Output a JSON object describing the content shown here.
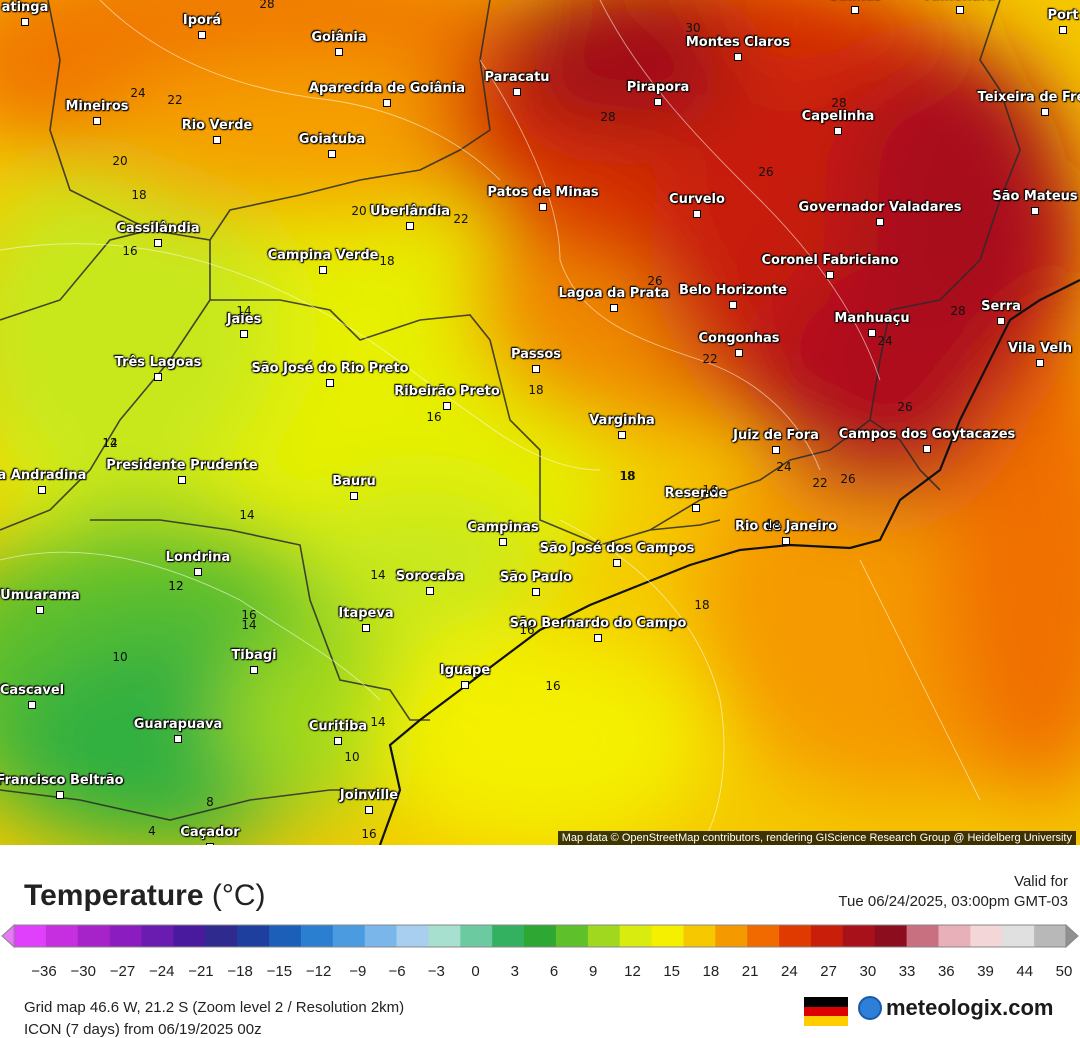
{
  "map": {
    "attribution": "Map data © OpenStreetMap contributors, rendering GIScience Research Group @ Heidelberg University",
    "cities": [
      {
        "name": "atinga"
      },
      {
        "name": "Iporá"
      },
      {
        "name": "Goiânia"
      },
      {
        "name": "Aparecida de Goiânia"
      },
      {
        "name": "Paracatu"
      },
      {
        "name": "Montes Claros"
      },
      {
        "name": "Salinas"
      },
      {
        "name": "Almenara"
      },
      {
        "name": "Port"
      },
      {
        "name": "Mineiros"
      },
      {
        "name": "Rio Verde"
      },
      {
        "name": "Goiatuba"
      },
      {
        "name": "Pirapora"
      },
      {
        "name": "Capelinha"
      },
      {
        "name": "Teixeira de Freitas"
      },
      {
        "name": "Patos de Minas"
      },
      {
        "name": "Curvelo"
      },
      {
        "name": "Governador Valadares"
      },
      {
        "name": "São Mateus"
      },
      {
        "name": "Uberlândia"
      },
      {
        "name": "Cassilândia"
      },
      {
        "name": "Campina Verde"
      },
      {
        "name": "Coronel Fabriciano"
      },
      {
        "name": "Lagoa da Prata"
      },
      {
        "name": "Belo Horizonte"
      },
      {
        "name": "Serra"
      },
      {
        "name": "Vila Velh"
      },
      {
        "name": "Jales"
      },
      {
        "name": "Manhuaçu"
      },
      {
        "name": "Três Lagoas"
      },
      {
        "name": "São José do Rio Preto"
      },
      {
        "name": "Passos"
      },
      {
        "name": "Congonhas"
      },
      {
        "name": "Ribeirão Preto"
      },
      {
        "name": "Varginha"
      },
      {
        "name": "Juiz de Fora"
      },
      {
        "name": "Campos dos Goytacazes"
      },
      {
        "name": "Presidente Prudente"
      },
      {
        "name": "a Andradina"
      },
      {
        "name": "Bauru"
      },
      {
        "name": "Resende"
      },
      {
        "name": "Campinas"
      },
      {
        "name": "Rio de Janeiro"
      },
      {
        "name": "São José dos Campos"
      },
      {
        "name": "Londrina"
      },
      {
        "name": "Sorocaba"
      },
      {
        "name": "São Paulo"
      },
      {
        "name": "Umuarama"
      },
      {
        "name": "São Bernardo do Campo"
      },
      {
        "name": "Itapeva"
      },
      {
        "name": "Tibagi"
      },
      {
        "name": "Iguape"
      },
      {
        "name": "Cascavel"
      },
      {
        "name": "Guarapuava"
      },
      {
        "name": "Curitiba"
      },
      {
        "name": "Francisco Beltrão"
      },
      {
        "name": "Joinville"
      },
      {
        "name": "Caçador"
      }
    ],
    "isotherm_labels": [
      "28",
      "24",
      "22",
      "20",
      "18",
      "16",
      "14",
      "12",
      "10",
      "8",
      "4",
      "30",
      "28",
      "26",
      "22",
      "20",
      "18",
      "16",
      "14",
      "12",
      "16",
      "18",
      "26",
      "28",
      "24",
      "22",
      "26",
      "18",
      "16",
      "18",
      "18",
      "16",
      "16",
      "14",
      "14",
      "14",
      "10",
      "16",
      "24",
      "26",
      "22",
      "18",
      "12",
      "14",
      "28"
    ]
  },
  "legend": {
    "title": "Temperature",
    "unit": "(°C)",
    "valid_label": "Valid for",
    "valid_time": "Tue 06/24/2025, 03:00pm GMT-03",
    "ticks": [
      "−36",
      "−30",
      "−27",
      "−24",
      "−21",
      "−18",
      "−15",
      "−12",
      "−9",
      "−6",
      "−3",
      "0",
      "3",
      "6",
      "9",
      "12",
      "15",
      "18",
      "21",
      "24",
      "27",
      "30",
      "33",
      "36",
      "39",
      "44",
      "50"
    ],
    "colors": [
      "#e040fb",
      "#c62fe0",
      "#a523c9",
      "#8a1cc0",
      "#6a1bb0",
      "#4a1a9e",
      "#2f2a8e",
      "#1f3f9e",
      "#1c5fb8",
      "#2b7fd0",
      "#4a9be0",
      "#7ab6ea",
      "#a9cff0",
      "#a8e0d0",
      "#6ccaa0",
      "#33b060",
      "#2ea832",
      "#5ec02a",
      "#9fd81e",
      "#d8ec10",
      "#f4f000",
      "#f5c800",
      "#f49a00",
      "#f06a00",
      "#e03a00",
      "#c81e0a",
      "#a8101a",
      "#8c0d1e",
      "#c87080",
      "#e8b0b8",
      "#f2d6d8",
      "#e0e0e0",
      "#b8b8b8"
    ],
    "grid_info": "Grid map 46.6 W, 21.2 S (Zoom level 2 / Resolution 2km)",
    "model_info": "ICON (7 days) from 06/19/2025 00z",
    "brand": "meteologix.com"
  }
}
